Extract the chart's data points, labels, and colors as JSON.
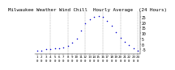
{
  "title": "Milwaukee Weather Wind Chill  Hourly Average  (24 Hours)",
  "title_fontsize": 4.2,
  "hours": [
    1,
    2,
    3,
    4,
    5,
    6,
    7,
    8,
    9,
    10,
    11,
    12,
    13,
    14,
    15,
    16,
    17,
    18,
    19,
    20,
    21,
    22,
    23,
    24
  ],
  "wind_chill": [
    -6,
    -6,
    -5,
    -5,
    -4,
    -4,
    -3,
    -2,
    1,
    5,
    12,
    19,
    23,
    25,
    26,
    25,
    21,
    17,
    11,
    6,
    2,
    -1,
    -4,
    -6
  ],
  "dot_color": "#0000cc",
  "bg_color": "#ffffff",
  "grid_color": "#888888",
  "ylim": [
    -9,
    30
  ],
  "xlim": [
    0.5,
    24.5
  ],
  "xtick_positions": [
    1,
    2,
    3,
    4,
    5,
    6,
    7,
    8,
    9,
    10,
    11,
    12,
    13,
    14,
    15,
    16,
    17,
    18,
    19,
    20,
    21,
    22,
    23,
    24
  ],
  "vgrid_positions": [
    4,
    8,
    12,
    16,
    20,
    24
  ],
  "ytick_positions": [
    -5,
    0,
    5,
    10,
    15,
    20,
    25
  ],
  "ytick_labels": [
    "-5",
    "0",
    "5",
    "10",
    "15",
    "20",
    "25"
  ],
  "ytick_fontsize": 3.5,
  "xtick_fontsize": 3.0
}
